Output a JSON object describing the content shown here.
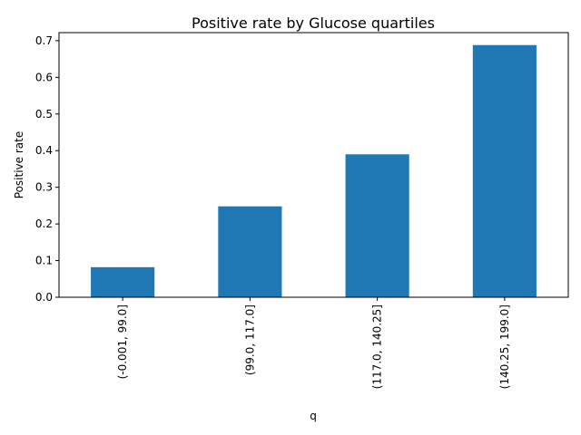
{
  "chart_data": {
    "type": "bar",
    "title": "Positive rate by Glucose quartiles",
    "xlabel": "q",
    "ylabel": "Positive rate",
    "categories": [
      "(-0.001, 99.0]",
      "(99.0, 117.0]",
      "(117.0, 140.25]",
      "(140.25, 199.0]"
    ],
    "values": [
      0.082,
      0.248,
      0.39,
      0.688
    ],
    "ylim": [
      0,
      0.722
    ],
    "yticks": [
      0.0,
      0.1,
      0.2,
      0.3,
      0.4,
      0.5,
      0.6,
      0.7
    ],
    "ytick_labels": [
      "0.0",
      "0.1",
      "0.2",
      "0.3",
      "0.4",
      "0.5",
      "0.6",
      "0.7"
    ],
    "bar_color": "#1f77b4",
    "grid": false,
    "legend": "none"
  }
}
